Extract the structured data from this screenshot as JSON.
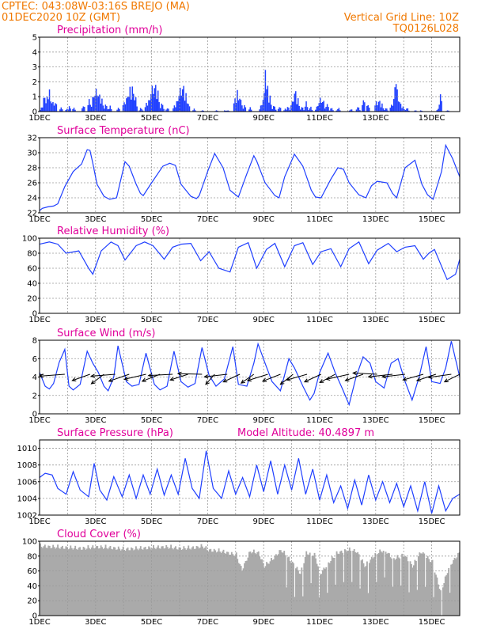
{
  "header": {
    "location": "CPTEC:   043:08W-03:16S   BREJO (MA)",
    "run": "01DEC2020 10Z (GMT)",
    "grid_note": "Vertical Grid Line: 10Z",
    "model": "TQ0126L028",
    "altitude": "Model Altitude: 40.4897 m"
  },
  "colors": {
    "header": "#f07800",
    "titles": "#e0009a",
    "series": "#1f3fff",
    "bars": "#2040ff",
    "cloud": "#aaaaaa",
    "arrows": "#000000"
  },
  "chart_data": [
    {
      "type": "bar",
      "title": "Precipitation (mm/h)",
      "ylim": [
        0,
        5
      ],
      "yticks": [
        0,
        1,
        2,
        3,
        4,
        5
      ],
      "xlim": [
        0,
        15
      ],
      "xticks": [
        0,
        2,
        4,
        6,
        8,
        10,
        12,
        14
      ],
      "xtick_labels": [
        "1DEC",
        "3DEC",
        "5DEC",
        "7DEC",
        "9DEC",
        "11DEC",
        "13DEC",
        "15DEC"
      ],
      "grid": true,
      "peaks": [
        [
          0.05,
          0.3
        ],
        [
          0.15,
          1.3
        ],
        [
          0.25,
          1.1
        ],
        [
          0.33,
          1.6
        ],
        [
          0.45,
          0.9
        ],
        [
          0.55,
          0.8
        ],
        [
          0.75,
          0.3
        ],
        [
          0.95,
          0.2
        ],
        [
          1.05,
          0.4
        ],
        [
          1.2,
          0.3
        ],
        [
          1.55,
          0.5
        ],
        [
          1.75,
          0.9
        ],
        [
          1.9,
          1.4
        ],
        [
          2.0,
          2.0
        ],
        [
          2.1,
          1.6
        ],
        [
          2.2,
          1.0
        ],
        [
          2.35,
          0.6
        ],
        [
          2.5,
          0.4
        ],
        [
          2.8,
          0.3
        ],
        [
          3.0,
          0.8
        ],
        [
          3.1,
          1.4
        ],
        [
          3.2,
          1.9
        ],
        [
          3.3,
          2.0
        ],
        [
          3.4,
          1.2
        ],
        [
          3.6,
          0.3
        ],
        [
          3.8,
          0.7
        ],
        [
          3.9,
          1.1
        ],
        [
          4.0,
          2.2
        ],
        [
          4.1,
          2.5
        ],
        [
          4.2,
          1.6
        ],
        [
          4.35,
          0.7
        ],
        [
          4.55,
          0.3
        ],
        [
          4.8,
          0.5
        ],
        [
          4.9,
          1.0
        ],
        [
          5.0,
          2.0
        ],
        [
          5.1,
          2.4
        ],
        [
          5.2,
          1.4
        ],
        [
          5.3,
          0.6
        ],
        [
          5.5,
          0.2
        ],
        [
          5.8,
          0.1
        ],
        [
          6.3,
          0.1
        ],
        [
          6.6,
          0.1
        ],
        [
          6.7,
          0.1
        ],
        [
          6.95,
          1.0
        ],
        [
          7.05,
          1.6
        ],
        [
          7.15,
          1.2
        ],
        [
          7.3,
          0.5
        ],
        [
          7.5,
          0.3
        ],
        [
          7.9,
          0.6
        ],
        [
          8.0,
          1.5
        ],
        [
          8.05,
          3.1
        ],
        [
          8.1,
          2.4
        ],
        [
          8.2,
          1.2
        ],
        [
          8.35,
          0.5
        ],
        [
          8.55,
          0.4
        ],
        [
          8.75,
          0.2
        ],
        [
          8.85,
          0.4
        ],
        [
          9.0,
          0.8
        ],
        [
          9.1,
          1.9
        ],
        [
          9.2,
          1.0
        ],
        [
          9.35,
          0.4
        ],
        [
          9.5,
          0.7
        ],
        [
          9.65,
          0.4
        ],
        [
          9.9,
          0.5
        ],
        [
          10.0,
          1.1
        ],
        [
          10.1,
          1.0
        ],
        [
          10.25,
          0.6
        ],
        [
          10.4,
          0.3
        ],
        [
          10.65,
          0.3
        ],
        [
          11.1,
          0.2
        ],
        [
          11.35,
          0.4
        ],
        [
          11.55,
          1.0
        ],
        [
          11.7,
          0.6
        ],
        [
          12.0,
          0.8
        ],
        [
          12.1,
          1.0
        ],
        [
          12.2,
          0.6
        ],
        [
          12.35,
          0.3
        ],
        [
          12.55,
          0.6
        ],
        [
          12.65,
          1.5
        ],
        [
          12.7,
          2.6
        ],
        [
          12.75,
          1.5
        ],
        [
          12.85,
          0.8
        ],
        [
          12.95,
          0.4
        ],
        [
          13.1,
          0.3
        ],
        [
          13.4,
          0.1
        ],
        [
          13.6,
          0.1
        ],
        [
          14.2,
          0.2
        ],
        [
          14.3,
          1.3
        ],
        [
          14.55,
          0.1
        ]
      ]
    },
    {
      "type": "line",
      "title": "Surface Temperature (nC)",
      "ylim": [
        22,
        32
      ],
      "yticks": [
        22,
        24,
        26,
        28,
        30,
        32
      ],
      "xlim": [
        0,
        15
      ],
      "xticks": [
        0,
        2,
        4,
        6,
        8,
        10,
        12,
        14
      ],
      "xtick_labels": [
        "1DEC",
        "3DEC",
        "5DEC",
        "7DEC",
        "9DEC",
        "11DEC",
        "13DEC",
        "15DEC"
      ],
      "grid": true,
      "x": [
        0,
        0.1,
        0.3,
        0.5,
        0.65,
        0.9,
        1.2,
        1.5,
        1.7,
        1.8,
        1.9,
        2.05,
        2.3,
        2.5,
        2.75,
        3.05,
        3.2,
        3.45,
        3.6,
        3.7,
        4.0,
        4.4,
        4.65,
        4.85,
        5.05,
        5.4,
        5.6,
        5.7,
        6.0,
        6.25,
        6.55,
        6.8,
        7.1,
        7.4,
        7.65,
        7.75,
        8.05,
        8.4,
        8.55,
        8.75,
        9.1,
        9.4,
        9.7,
        9.85,
        10.05,
        10.4,
        10.65,
        10.85,
        11.05,
        11.4,
        11.65,
        11.85,
        12.05,
        12.4,
        12.6,
        12.75,
        13.05,
        13.4,
        13.65,
        13.85,
        14.05,
        14.35,
        14.5,
        14.75,
        15.0
      ],
      "y": [
        22.3,
        22.6,
        22.8,
        22.9,
        23.2,
        25.5,
        27.5,
        28.5,
        30.4,
        30.3,
        28.6,
        25.8,
        24.2,
        23.8,
        24.0,
        28.8,
        28.2,
        25.8,
        24.6,
        24.3,
        26.0,
        28.2,
        28.6,
        28.3,
        25.8,
        24.2,
        23.9,
        24.3,
        27.5,
        29.9,
        28.0,
        25.0,
        24.1,
        27.2,
        29.6,
        28.9,
        26.0,
        24.3,
        24.0,
        26.8,
        29.8,
        28.2,
        25.0,
        24.1,
        24.0,
        26.5,
        28.0,
        27.8,
        26.0,
        24.4,
        24.0,
        25.6,
        26.2,
        26.0,
        24.6,
        24.0,
        28.0,
        29.0,
        25.8,
        24.4,
        23.8,
        27.5,
        31.0,
        29.2,
        26.8
      ]
    },
    {
      "type": "line",
      "title": "Relative Humidity (%)",
      "ylim": [
        0,
        100
      ],
      "yticks": [
        0,
        20,
        40,
        60,
        80,
        100
      ],
      "xlim": [
        0,
        15
      ],
      "xticks": [
        0,
        2,
        4,
        6,
        8,
        10,
        12,
        14
      ],
      "xtick_labels": [
        "1DEC",
        "3DEC",
        "5DEC",
        "7DEC",
        "9DEC",
        "11DEC",
        "13DEC",
        "15DEC"
      ],
      "grid": true,
      "x": [
        0,
        0.35,
        0.65,
        0.95,
        1.4,
        1.75,
        1.9,
        2.2,
        2.55,
        2.8,
        3.05,
        3.45,
        3.75,
        4.05,
        4.45,
        4.75,
        5.05,
        5.4,
        5.75,
        6.05,
        6.4,
        6.8,
        7.1,
        7.45,
        7.75,
        8.1,
        8.4,
        8.75,
        9.1,
        9.4,
        9.75,
        10.05,
        10.4,
        10.75,
        11.05,
        11.4,
        11.75,
        12.05,
        12.45,
        12.75,
        13.05,
        13.4,
        13.7,
        13.9,
        14.1,
        14.55,
        14.85,
        15.0
      ],
      "y": [
        92,
        95,
        92,
        80,
        83,
        60,
        52,
        83,
        95,
        90,
        71,
        90,
        95,
        90,
        72,
        88,
        92,
        93,
        70,
        82,
        60,
        55,
        88,
        94,
        60,
        85,
        93,
        62,
        90,
        94,
        65,
        82,
        86,
        62,
        86,
        95,
        66,
        84,
        93,
        82,
        88,
        90,
        72,
        80,
        85,
        45,
        52,
        72
      ]
    },
    {
      "type": "line",
      "title": "Surface Wind (m/s)",
      "ylim": [
        0,
        8
      ],
      "yticks": [
        0,
        2,
        4,
        6,
        8
      ],
      "xlim": [
        0,
        15
      ],
      "xticks": [
        0,
        2,
        4,
        6,
        8,
        10,
        12,
        14
      ],
      "xtick_labels": [
        "1DEC",
        "3DEC",
        "5DEC",
        "7DEC",
        "9DEC",
        "11DEC",
        "13DEC",
        "15DEC"
      ],
      "grid": true,
      "x": [
        0,
        0.2,
        0.35,
        0.5,
        0.7,
        0.9,
        1.05,
        1.2,
        1.45,
        1.7,
        1.9,
        2.1,
        2.3,
        2.45,
        2.65,
        2.8,
        3.1,
        3.3,
        3.55,
        3.8,
        4.1,
        4.3,
        4.55,
        4.8,
        5.05,
        5.3,
        5.55,
        5.8,
        6.05,
        6.3,
        6.6,
        6.9,
        7.1,
        7.4,
        7.65,
        7.8,
        8.05,
        8.3,
        8.6,
        8.9,
        9.1,
        9.4,
        9.65,
        9.8,
        10.0,
        10.3,
        10.55,
        10.8,
        11.05,
        11.3,
        11.55,
        11.8,
        12.0,
        12.3,
        12.55,
        12.8,
        13.05,
        13.3,
        13.55,
        13.8,
        14.0,
        14.3,
        14.5,
        14.7,
        15.0
      ],
      "y": [
        4.5,
        3.0,
        2.7,
        3.3,
        5.6,
        7.0,
        3.0,
        2.6,
        3.2,
        6.8,
        5.5,
        4.5,
        3.0,
        2.5,
        4.0,
        7.4,
        3.5,
        3.0,
        3.2,
        6.6,
        3.2,
        2.6,
        3.0,
        6.8,
        3.5,
        2.9,
        3.3,
        7.2,
        4.2,
        3.0,
        3.8,
        7.3,
        3.2,
        3.0,
        5.5,
        7.6,
        5.5,
        3.5,
        2.5,
        6.0,
        5.0,
        3.0,
        1.5,
        2.2,
        4.5,
        6.6,
        4.5,
        2.8,
        1.0,
        4.0,
        6.2,
        5.5,
        3.5,
        2.8,
        5.5,
        6.0,
        3.5,
        1.5,
        4.0,
        7.3,
        3.5,
        3.3,
        5.0,
        7.9,
        4.0
      ],
      "wind_vectors": [
        {
          "x": 0.15,
          "dx": -1.8,
          "dy": -0.6
        },
        {
          "x": 0.9,
          "dx": -2.0,
          "dy": -0.3
        },
        {
          "x": 1.8,
          "dx": -1.4,
          "dy": -1.0
        },
        {
          "x": 2.3,
          "dx": -1.0,
          "dy": -1.5
        },
        {
          "x": 2.7,
          "dx": -1.9,
          "dy": -0.3
        },
        {
          "x": 3.2,
          "dx": -1.6,
          "dy": -1.1
        },
        {
          "x": 3.8,
          "dx": -1.7,
          "dy": -0.8
        },
        {
          "x": 4.3,
          "dx": -1.4,
          "dy": -1.1
        },
        {
          "x": 4.75,
          "dx": -1.9,
          "dy": -0.2
        },
        {
          "x": 5.3,
          "dx": -1.4,
          "dy": -0.9
        },
        {
          "x": 5.8,
          "dx": -1.9,
          "dy": 0.1
        },
        {
          "x": 6.25,
          "dx": -0.7,
          "dy": -1.6
        },
        {
          "x": 6.7,
          "dx": -1.8,
          "dy": -0.4
        },
        {
          "x": 7.15,
          "dx": -1.3,
          "dy": -1.2
        },
        {
          "x": 7.65,
          "dx": -1.0,
          "dy": -1.4
        },
        {
          "x": 8.15,
          "dx": -1.6,
          "dy": -1.0
        },
        {
          "x": 8.6,
          "dx": -1.4,
          "dy": -1.1
        },
        {
          "x": 9.05,
          "dx": -1.0,
          "dy": -1.6
        },
        {
          "x": 9.55,
          "dx": -1.6,
          "dy": -0.9
        },
        {
          "x": 10.05,
          "dx": -1.3,
          "dy": -1.2
        },
        {
          "x": 10.55,
          "dx": -1.2,
          "dy": -1.3
        },
        {
          "x": 11.05,
          "dx": -1.8,
          "dy": -0.8
        },
        {
          "x": 11.55,
          "dx": -1.4,
          "dy": -1.0
        },
        {
          "x": 12.05,
          "dx": -1.9,
          "dy": 0.2
        },
        {
          "x": 12.6,
          "dx": -1.9,
          "dy": -0.4
        },
        {
          "x": 13.05,
          "dx": -1.8,
          "dy": -0.4
        },
        {
          "x": 13.7,
          "dx": -1.6,
          "dy": -0.9
        },
        {
          "x": 14.15,
          "dx": -1.5,
          "dy": -1.0
        },
        {
          "x": 14.7,
          "dx": -1.8,
          "dy": -0.5
        },
        {
          "x": 15.0,
          "dx": -1.2,
          "dy": -1.2
        }
      ]
    },
    {
      "type": "line",
      "title": "Surface Pressure (hPa)",
      "ylim": [
        1002,
        1011
      ],
      "yticks": [
        1002,
        1004,
        1006,
        1008,
        1010
      ],
      "xlim": [
        0,
        15
      ],
      "xticks": [
        0,
        2,
        4,
        6,
        8,
        10,
        12,
        14
      ],
      "xtick_labels": [
        "1DEC",
        "3DEC",
        "5DEC",
        "7DEC",
        "9DEC",
        "11DEC",
        "13DEC",
        "15DEC"
      ],
      "grid": true,
      "x": [
        0,
        0.2,
        0.45,
        0.65,
        0.95,
        1.2,
        1.45,
        1.75,
        1.95,
        2.15,
        2.4,
        2.65,
        2.95,
        3.2,
        3.45,
        3.7,
        3.95,
        4.2,
        4.45,
        4.7,
        4.95,
        5.2,
        5.45,
        5.7,
        5.95,
        6.2,
        6.5,
        6.75,
        7.0,
        7.25,
        7.5,
        7.75,
        8.0,
        8.25,
        8.5,
        8.75,
        9.0,
        9.25,
        9.5,
        9.75,
        10.0,
        10.25,
        10.5,
        10.75,
        11.0,
        11.25,
        11.5,
        11.75,
        12.0,
        12.25,
        12.5,
        12.75,
        13.0,
        13.25,
        13.5,
        13.75,
        14.0,
        14.25,
        14.5,
        14.75,
        15.0
      ],
      "y": [
        1006.5,
        1007.0,
        1006.8,
        1005.2,
        1004.5,
        1007.2,
        1005.0,
        1004.2,
        1008.2,
        1005.0,
        1003.8,
        1006.6,
        1004.2,
        1006.8,
        1004.0,
        1006.8,
        1004.5,
        1007.5,
        1004.4,
        1006.8,
        1004.5,
        1008.8,
        1005.2,
        1004.0,
        1009.7,
        1005.2,
        1004.0,
        1007.3,
        1004.5,
        1006.5,
        1004.2,
        1008.0,
        1004.8,
        1008.5,
        1004.5,
        1008.0,
        1005.0,
        1008.8,
        1004.5,
        1007.5,
        1003.8,
        1006.8,
        1003.5,
        1005.5,
        1002.8,
        1006.2,
        1003.2,
        1006.8,
        1003.8,
        1006.0,
        1003.5,
        1005.8,
        1003.0,
        1005.5,
        1002.5,
        1006.0,
        1002.2,
        1005.5,
        1002.5,
        1004.0,
        1004.5
      ]
    },
    {
      "type": "area",
      "title": "Cloud Cover (%)",
      "ylim": [
        0,
        100
      ],
      "yticks": [
        0,
        20,
        40,
        60,
        80,
        100
      ],
      "xlim": [
        0,
        15
      ],
      "xticks": [
        0,
        2,
        4,
        6,
        8,
        10,
        12,
        14
      ],
      "xtick_labels": [
        "1DEC",
        "3DEC",
        "5DEC",
        "7DEC",
        "9DEC",
        "11DEC",
        "13DEC",
        "15DEC"
      ],
      "grid": true,
      "x": [
        0,
        0.5,
        1.0,
        1.5,
        2.0,
        2.5,
        3.0,
        3.5,
        4.0,
        4.5,
        5.0,
        5.5,
        5.8,
        6.0,
        6.5,
        7.0,
        7.2,
        7.5,
        7.8,
        8.0,
        8.3,
        8.6,
        9.0,
        9.3,
        9.5,
        9.8,
        10.0,
        10.3,
        10.6,
        11.0,
        11.3,
        11.6,
        12.0,
        12.3,
        12.6,
        13.0,
        13.3,
        13.6,
        14.0,
        14.3,
        14.6,
        15.0
      ],
      "y": [
        97,
        96,
        95,
        94,
        96,
        95,
        93,
        94,
        95,
        96,
        94,
        95,
        97,
        92,
        90,
        85,
        65,
        90,
        88,
        70,
        80,
        92,
        75,
        60,
        88,
        85,
        60,
        75,
        88,
        92,
        90,
        70,
        88,
        92,
        80,
        85,
        70,
        90,
        75,
        35,
        70,
        90
      ]
    }
  ]
}
